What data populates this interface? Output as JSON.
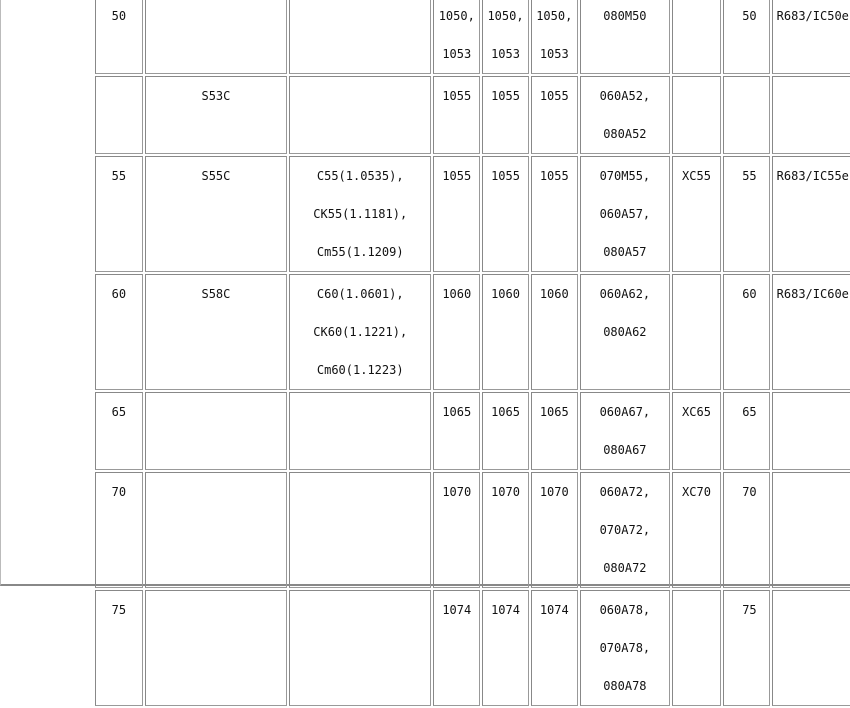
{
  "table": {
    "rows": [
      {
        "cells": [
          "50",
          "",
          "",
          "1050,|1053",
          "1050,|1053",
          "1050,|1053",
          "080M50",
          "",
          "50",
          "R683/IC50e"
        ]
      },
      {
        "cells": [
          "",
          "S53C",
          "",
          "1055",
          "1055",
          "1055",
          "060A52,|080A52",
          "",
          "",
          ""
        ]
      },
      {
        "cells": [
          "55",
          "S55C",
          "C55(1.0535),|CK55(1.1181),|Cm55(1.1209)",
          "1055",
          "1055",
          "1055",
          "070M55,|060A57,|080A57",
          "XC55",
          "55",
          "R683/IC55e"
        ]
      },
      {
        "cells": [
          "60",
          "S58C",
          "C60(1.0601),|CK60(1.1221),|Cm60(1.1223)",
          "1060",
          "1060",
          "1060",
          "060A62,|080A62",
          "",
          "60",
          "R683/IC60e"
        ]
      },
      {
        "cells": [
          "65",
          "",
          "",
          "1065",
          "1065",
          "1065",
          "060A67,|080A67",
          "XC65",
          "65",
          ""
        ]
      },
      {
        "cells": [
          "70",
          "",
          "",
          "1070",
          "1070",
          "1070",
          "060A72,|070A72,|080A72",
          "XC70",
          "70",
          ""
        ]
      },
      {
        "cells": [
          "75",
          "",
          "",
          "1074",
          "1074",
          "1074",
          "060A78,|070A78,|080A78",
          "",
          "75",
          ""
        ]
      }
    ]
  }
}
